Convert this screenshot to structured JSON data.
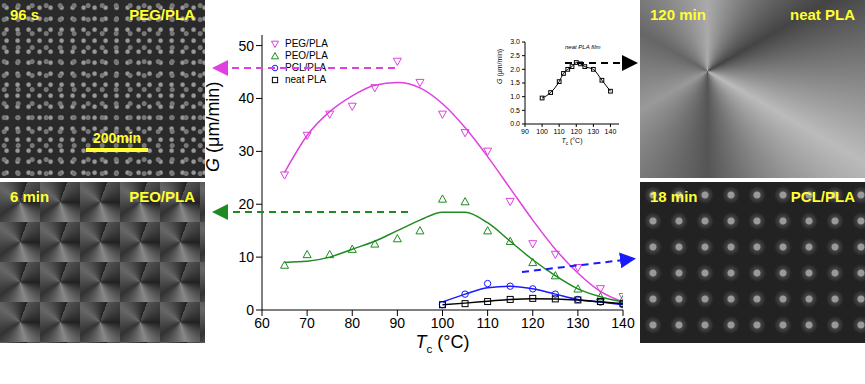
{
  "chart_data": {
    "type": "line",
    "x_label": "Tc (°C)",
    "y_label": "G (μm/min)",
    "x": [
      65,
      70,
      75,
      80,
      85,
      90,
      95,
      100,
      105,
      110,
      115,
      120,
      125,
      130,
      135,
      140
    ],
    "xlim": [
      60,
      140
    ],
    "xticks": [
      60,
      70,
      80,
      90,
      100,
      110,
      120,
      130,
      140
    ],
    "ylim": [
      0,
      52
    ],
    "yticks": [
      0,
      10,
      20,
      30,
      40,
      50
    ],
    "legend": "upper left",
    "series": [
      {
        "name": "PEG/PLA",
        "color": "#e040e0",
        "marker": "triangle-down",
        "values": [
          25.5,
          33,
          37,
          38.5,
          42,
          47,
          43,
          37,
          33.5,
          30,
          20.5,
          12.5,
          10.5,
          8,
          4,
          2.5
        ],
        "fit": [
          26,
          33,
          37.5,
          40.5,
          42.5,
          43,
          42,
          39,
          34.5,
          29,
          23,
          17,
          11.5,
          7,
          3.5,
          1.5
        ]
      },
      {
        "name": "PEO/PLA",
        "color": "#1f8a1f",
        "marker": "triangle-up",
        "values": [
          8.5,
          10.5,
          10.5,
          11.5,
          12.5,
          13.5,
          15,
          21,
          20.5,
          15,
          13,
          9,
          6.5,
          4,
          2.5,
          2
        ],
        "fit": [
          9,
          9.2,
          10,
          11.5,
          13,
          15,
          17,
          18.5,
          18.5,
          16.5,
          13,
          9.5,
          6.5,
          4,
          2.5,
          1.5
        ]
      },
      {
        "name": "PCL/PLA",
        "color": "#1a1aff",
        "marker": "circle",
        "values": [
          null,
          null,
          null,
          null,
          null,
          null,
          null,
          1,
          3,
          5,
          4.5,
          4,
          3,
          2,
          1.5,
          1
        ],
        "fit": [
          null,
          null,
          null,
          null,
          null,
          null,
          null,
          1.5,
          3,
          4.2,
          4.5,
          4,
          3,
          2,
          1.5,
          1
        ]
      },
      {
        "name": "neat PLA",
        "color": "#000000",
        "marker": "square",
        "values": [
          null,
          null,
          null,
          null,
          null,
          null,
          null,
          1,
          1.2,
          1.6,
          2,
          2.2,
          2.1,
          1.9,
          1.6,
          1.2
        ],
        "fit": [
          null,
          null,
          null,
          null,
          null,
          null,
          null,
          1,
          1.3,
          1.65,
          2,
          2.15,
          2.1,
          1.9,
          1.55,
          1.2
        ]
      }
    ],
    "inset": {
      "type": "line",
      "title": "neat PLA film",
      "x_label": "Tc (°C)",
      "y_label": "G (μm/min)",
      "color": "#000000",
      "marker": "square",
      "x": [
        100,
        105,
        110,
        112.5,
        115,
        117.5,
        120,
        122.5,
        125,
        130,
        135,
        140
      ],
      "values": [
        0.95,
        1.15,
        1.55,
        1.85,
        2.0,
        2.1,
        2.25,
        2.2,
        2.1,
        2.0,
        1.6,
        1.2
      ],
      "xlim": [
        90,
        145
      ],
      "xticks": [
        90,
        100,
        110,
        120,
        130,
        140
      ],
      "ylim": [
        0,
        3
      ],
      "yticks": [
        {
          "value": 0,
          "label": "0.0"
        },
        {
          "value": 0.5,
          "label": "0.5"
        },
        {
          "value": 1,
          "label": "1.0"
        },
        {
          "value": 1.5,
          "label": "1.5"
        },
        {
          "value": 2,
          "label": "2.0"
        },
        {
          "value": 2.5,
          "label": "2.5"
        },
        {
          "value": 3,
          "label": "3.0"
        }
      ]
    },
    "panels": [
      {
        "time": "96 s",
        "label": "PEG/PLA",
        "scale_bar": "200min"
      },
      {
        "time": "6 min",
        "label": "PEO/PLA"
      },
      {
        "time": "120 min",
        "label": "neat PLA"
      },
      {
        "time": "18 min",
        "label": "PCL/PLA"
      }
    ]
  }
}
